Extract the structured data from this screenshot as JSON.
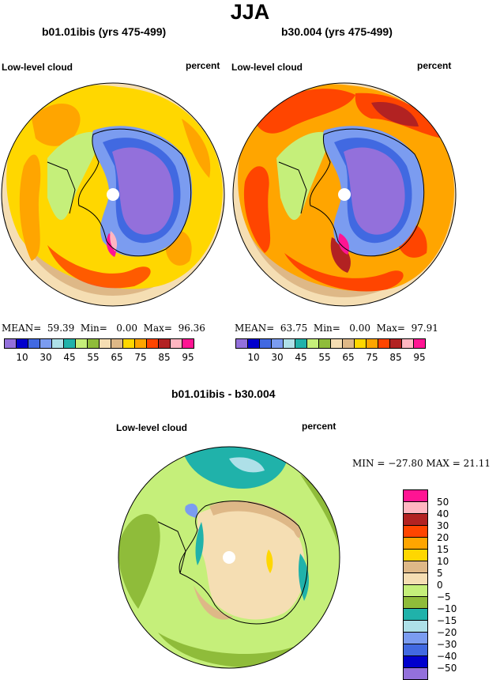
{
  "header": {
    "title": "JJA"
  },
  "panels": [
    {
      "id": "left",
      "title": "b01.01ibis (yrs 475-499)",
      "label_left": "Low-level cloud",
      "label_right": "percent",
      "stats": {
        "mean_label": "MEAN=",
        "mean": "59.39",
        "min_label": "Min=",
        "min": "0.00",
        "max_label": "Max=",
        "max": "96.36"
      }
    },
    {
      "id": "right",
      "title": "b30.004 (yrs 475-499)",
      "label_left": "Low-level cloud",
      "label_right": "percent",
      "stats": {
        "mean_label": "MEAN=",
        "mean": "63.75",
        "min_label": "Min=",
        "min": "0.00",
        "max_label": "Max=",
        "max": "97.91"
      }
    }
  ],
  "diff_panel": {
    "title": "b01.01ibis - b30.004",
    "label_left": "Low-level cloud",
    "label_right": "percent",
    "stats_text": "MIN = −27.80  MAX =  21.11"
  },
  "colorbar_top": {
    "colors": [
      "#9370db",
      "#0000cd",
      "#4169e1",
      "#7b9cf0",
      "#aee0e8",
      "#20b2aa",
      "#c5ef7a",
      "#8fbc3a",
      "#f5deb3",
      "#deb887",
      "#ffd700",
      "#ffa500",
      "#ff4500",
      "#b22222",
      "#ffb6c1",
      "#ff1493"
    ],
    "labels": [
      "10",
      "30",
      "45",
      "55",
      "65",
      "75",
      "85",
      "95"
    ]
  },
  "colorbar_diff": {
    "colors": [
      "#ff1493",
      "#ffb6c1",
      "#b22222",
      "#ff4500",
      "#ffa500",
      "#ffd700",
      "#deb887",
      "#f5deb3",
      "#c5ef7a",
      "#8fbc3a",
      "#20b2aa",
      "#aee0e8",
      "#7b9cf0",
      "#4169e1",
      "#0000cd",
      "#9370db"
    ],
    "labels": [
      "50",
      "40",
      "30",
      "20",
      "15",
      "10",
      "5",
      "0",
      "−5",
      "−10",
      "−15",
      "−20",
      "−30",
      "−40",
      "−50"
    ]
  }
}
